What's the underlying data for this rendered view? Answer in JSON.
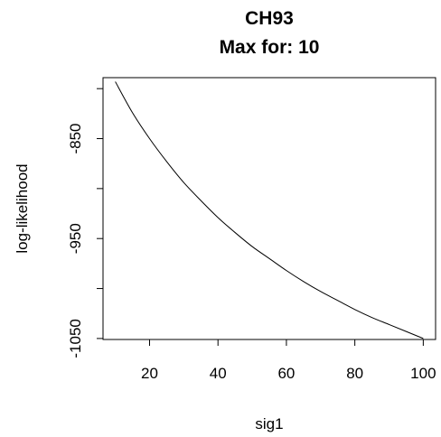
{
  "chart_data": {
    "type": "line",
    "title": "CH93",
    "subtitle": "Max for: 10",
    "xlabel": "sig1",
    "ylabel": "log-likelihood",
    "x": [
      10,
      15,
      20,
      25,
      30,
      35,
      40,
      45,
      50,
      55,
      60,
      65,
      70,
      75,
      80,
      85,
      90,
      95,
      100
    ],
    "series": [
      {
        "values": [
          -793,
          -824,
          -850,
          -873,
          -894,
          -912,
          -929,
          -944,
          -958,
          -970,
          -982,
          -993,
          -1003,
          -1012,
          -1021,
          -1029,
          -1036,
          -1043,
          -1050
        ]
      }
    ],
    "xlim": [
      6.4,
      103.6
    ],
    "ylim": [
      -1051,
      -789
    ],
    "xticks": [
      20,
      40,
      60,
      80,
      100
    ],
    "xtick_labels": [
      "20",
      "40",
      "60",
      "80",
      "100"
    ],
    "yticks": [
      -1050,
      -950,
      -850
    ],
    "ytick_labels": [
      "-1050",
      "-950",
      "-850"
    ],
    "grid": false,
    "legend": "none",
    "colors": {
      "line": "#000000",
      "frame": "#000000",
      "background": "#ffffff"
    }
  }
}
